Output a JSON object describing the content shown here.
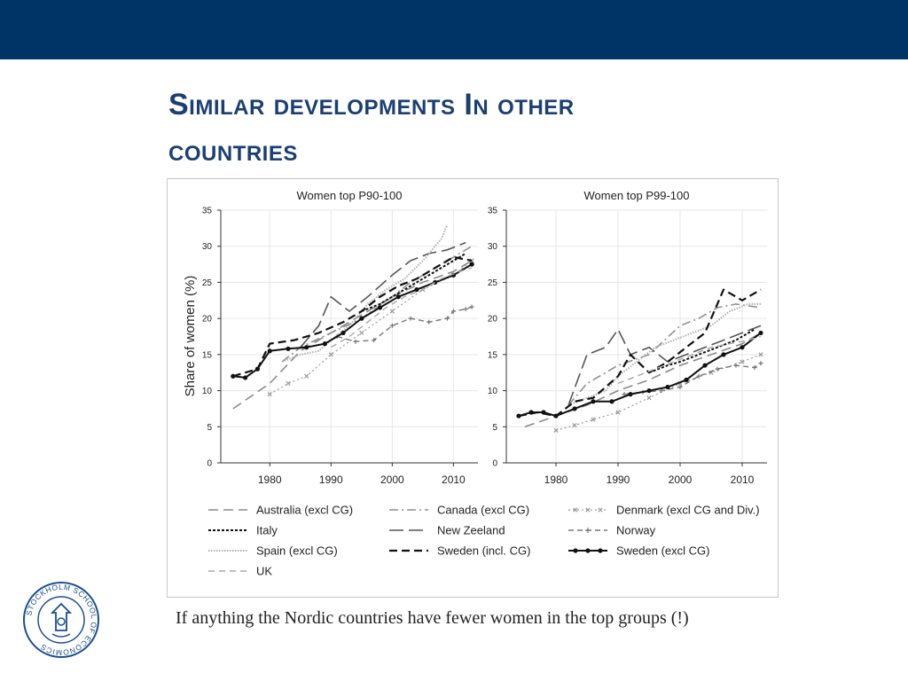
{
  "slide": {
    "title_line1": "Similar developments In other",
    "title_line2": "countries",
    "caption": "If anything the Nordic countries have fewer women in the top groups (!)",
    "logo_text": "STOCKHOLM SCHOOL OF ECONOMICS"
  },
  "colors": {
    "header_bar": "#003366",
    "title": "#1b3f73"
  },
  "chart_data": {
    "type": "line",
    "ylabel": "Share of women (%)",
    "ylim": [
      0,
      35
    ],
    "yticks": [
      0,
      5,
      10,
      15,
      20,
      25,
      30,
      35
    ],
    "xlim": [
      1972,
      2014
    ],
    "xticks": [
      1980,
      1990,
      2000,
      2010
    ],
    "grid": true,
    "legend_position": "bottom",
    "legend": [
      {
        "name": "Australia (excl CG)",
        "key": "australia"
      },
      {
        "name": "Canada (excl CG)",
        "key": "canada"
      },
      {
        "name": "Denmark (excl CG and Div.)",
        "key": "denmark"
      },
      {
        "name": "Italy",
        "key": "italy"
      },
      {
        "name": "New Zeeland",
        "key": "newzealand"
      },
      {
        "name": "Norway",
        "key": "norway"
      },
      {
        "name": "Spain (excl CG)",
        "key": "spain"
      },
      {
        "name": "Sweden (incl. CG)",
        "key": "sweden_incl"
      },
      {
        "name": "Sweden (excl CG)",
        "key": "sweden_excl"
      },
      {
        "name": "UK",
        "key": "uk"
      }
    ],
    "panels": [
      {
        "title": "Women top P90-100",
        "series": [
          {
            "key": "australia",
            "x": [
              1974,
              1980,
              1985,
              1990,
              1995,
              2000,
              2005,
              2010,
              2013
            ],
            "y": [
              7.5,
              11,
              15.5,
              18,
              20.5,
              23,
              25,
              26.5,
              28
            ]
          },
          {
            "key": "canada",
            "x": [
              1982,
              1985,
              1990,
              1995,
              2000,
              2003,
              2006,
              2009,
              2013
            ],
            "y": [
              14,
              16,
              18,
              20,
              23,
              25,
              26.5,
              28,
              30
            ]
          },
          {
            "key": "denmark",
            "x": [
              1980,
              1983,
              1986,
              1990,
              1995,
              2000,
              2005,
              2010,
              2013
            ],
            "y": [
              9.5,
              11,
              12,
              15,
              18,
              21,
              24,
              26,
              28
            ]
          },
          {
            "key": "italy",
            "x": [
              1995,
              1998,
              2000,
              2003,
              2006,
              2009,
              2012
            ],
            "y": [
              21,
              22,
              23,
              24.5,
              26,
              27.5,
              29
            ]
          },
          {
            "key": "newzealand",
            "x": [
              1985,
              1988,
              1990,
              1993,
              1996,
              2000,
              2003,
              2006,
              2009,
              2012
            ],
            "y": [
              16,
              19,
              23,
              21,
              23,
              26,
              28,
              29,
              29.5,
              30.5
            ]
          },
          {
            "key": "norway",
            "x": [
              1991,
              1994,
              1997,
              2000,
              2003,
              2006,
              2009,
              2010,
              2012,
              2013
            ],
            "y": [
              17.5,
              16.8,
              17,
              19,
              20,
              19.5,
              20,
              21,
              21.3,
              21.6
            ]
          },
          {
            "key": "spain",
            "x": [
              1982,
              1985,
              1988,
              1990,
              1993,
              1996,
              1999,
              2002,
              2005,
              2008,
              2009
            ],
            "y": [
              14,
              15,
              15.5,
              17,
              19,
              22,
              24,
              25.5,
              28,
              31,
              33
            ]
          },
          {
            "key": "sweden_incl",
            "x": [
              1974,
              1978,
              1980,
              1984,
              1988,
              1992,
              1995,
              1998,
              2001,
              2004,
              2007,
              2010,
              2013
            ],
            "y": [
              12,
              13,
              16.5,
              17,
              18,
              19.5,
              21,
              23,
              24.5,
              25.5,
              27,
              28.5,
              28
            ]
          },
          {
            "key": "sweden_excl",
            "x": [
              1974,
              1976,
              1978,
              1980,
              1983,
              1986,
              1989,
              1992,
              1995,
              1998,
              2001,
              2004,
              2007,
              2010,
              2013
            ],
            "y": [
              12,
              11.8,
              13,
              15.5,
              15.8,
              16,
              16.5,
              18,
              20,
              21.5,
              23,
              24,
              25,
              26,
              27.5
            ]
          },
          {
            "key": "uk",
            "x": [
              1990,
              1993,
              1996,
              1999,
              2002,
              2005,
              2008,
              2011,
              2013
            ],
            "y": [
              16,
              17.5,
              19.5,
              21.5,
              23,
              24,
              25.5,
              26.5,
              27
            ]
          }
        ]
      },
      {
        "title": "Women top P99-100",
        "series": [
          {
            "key": "australia",
            "x": [
              1975,
              1980,
              1985,
              1990,
              1995,
              2000,
              2005,
              2010,
              2013
            ],
            "y": [
              5,
              6.5,
              8,
              10,
              11.5,
              13.5,
              15,
              16.5,
              18
            ]
          },
          {
            "key": "canada",
            "x": [
              1982,
              1985,
              1990,
              1995,
              2000,
              2003,
              2006,
              2009,
              2013
            ],
            "y": [
              8,
              11,
              13.5,
              15,
              19,
              20,
              21.5,
              22,
              21.5
            ]
          },
          {
            "key": "denmark",
            "x": [
              1980,
              1983,
              1986,
              1990,
              1995,
              2000,
              2005,
              2010,
              2013
            ],
            "y": [
              4.5,
              5.2,
              6,
              7,
              9,
              11,
              12.5,
              14,
              15
            ]
          },
          {
            "key": "italy",
            "x": [
              1995,
              1998,
              2000,
              2003,
              2006,
              2009,
              2012
            ],
            "y": [
              12.5,
              13.5,
              14,
              15,
              16,
              17,
              18.5
            ]
          },
          {
            "key": "newzealand",
            "x": [
              1982,
              1985,
              1988,
              1990,
              1992,
              1995,
              1998,
              2001,
              2004,
              2007,
              2010,
              2013
            ],
            "y": [
              8,
              15,
              16,
              18.5,
              15,
              16,
              14,
              15,
              16,
              17,
              18,
              19
            ]
          },
          {
            "key": "norway",
            "x": [
              1991,
              1994,
              1997,
              2000,
              2003,
              2006,
              2009,
              2012,
              2013
            ],
            "y": [
              9.5,
              9.8,
              10,
              10.5,
              12,
              13,
              13.5,
              13.2,
              13.8
            ]
          },
          {
            "key": "spain",
            "x": [
              1982,
              1985,
              1988,
              1990,
              1993,
              1996,
              1999,
              2002,
              2005,
              2008,
              2011,
              2013
            ],
            "y": [
              8,
              9,
              10,
              12,
              14,
              16,
              17,
              18,
              19,
              21,
              22,
              22
            ]
          },
          {
            "key": "sweden_incl",
            "x": [
              1974,
              1977,
              1980,
              1983,
              1986,
              1990,
              1992,
              1995,
              1998,
              2001,
              2004,
              2007,
              2010,
              2013
            ],
            "y": [
              6.5,
              7,
              6.5,
              8.5,
              9,
              12,
              15,
              12.5,
              14,
              16,
              18,
              24,
              22.5,
              24
            ]
          },
          {
            "key": "sweden_excl",
            "x": [
              1974,
              1976,
              1978,
              1980,
              1983,
              1986,
              1989,
              1992,
              1995,
              1998,
              2001,
              2004,
              2007,
              2010,
              2013
            ],
            "y": [
              6.5,
              7,
              7,
              6.5,
              7.5,
              8.5,
              8.5,
              9.5,
              10,
              10.5,
              11.5,
              13.5,
              15,
              16,
              18
            ]
          },
          {
            "key": "uk",
            "x": [
              1990,
              1993,
              1996,
              1999,
              2002,
              2005,
              2008,
              2011,
              2013
            ],
            "y": [
              11,
              12,
              13,
              14,
              15,
              16,
              16.5,
              17,
              17.5
            ]
          }
        ]
      }
    ]
  }
}
